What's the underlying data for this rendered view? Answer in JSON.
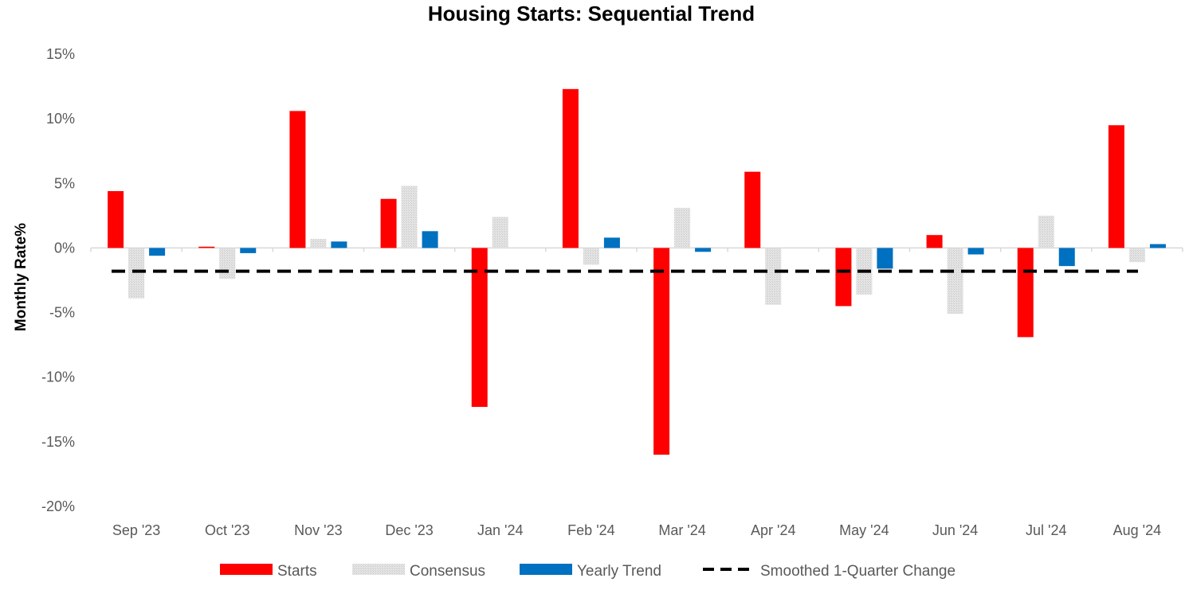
{
  "chart_data": {
    "type": "bar",
    "title": "Housing Starts: Sequential Trend",
    "xlabel": "",
    "ylabel": "Monthly Rate%",
    "ylim": [
      -20,
      15
    ],
    "ytick_values": [
      15,
      10,
      5,
      0,
      -5,
      -10,
      -15,
      -20
    ],
    "ytick_labels": [
      "15%",
      "10%",
      "5%",
      "0%",
      "-5%",
      "-10%",
      "-15%",
      "-20%"
    ],
    "categories": [
      "Sep '23",
      "Oct '23",
      "Nov '23",
      "Dec '23",
      "Jan '24",
      "Feb '24",
      "Mar '24",
      "Apr '24",
      "May '24",
      "Jun '24",
      "Jul '24",
      "Aug '24"
    ],
    "series": [
      {
        "name": "Starts",
        "color": "#ff0000",
        "values": [
          4.4,
          0.1,
          10.6,
          3.8,
          -12.3,
          12.3,
          -16.0,
          5.9,
          -4.5,
          1.0,
          -6.9,
          9.5
        ]
      },
      {
        "name": "Consensus",
        "color": "#d9d9d9",
        "pattern": "light-hatch",
        "values": [
          -3.9,
          -2.4,
          0.7,
          4.8,
          2.4,
          -1.3,
          3.1,
          -4.4,
          -3.6,
          -5.1,
          2.5,
          -1.1
        ]
      },
      {
        "name": "Yearly Trend",
        "color": "#0070c0",
        "values": [
          -0.6,
          -0.4,
          0.5,
          1.3,
          0.0,
          0.8,
          -0.3,
          0.0,
          -1.6,
          -0.5,
          -1.4,
          0.3
        ]
      }
    ],
    "line_series": {
      "name": "Smoothed 1-Quarter Change",
      "color": "#000000",
      "style": "dashed",
      "value": -1.8
    },
    "legend_position": "bottom",
    "grid": false
  }
}
